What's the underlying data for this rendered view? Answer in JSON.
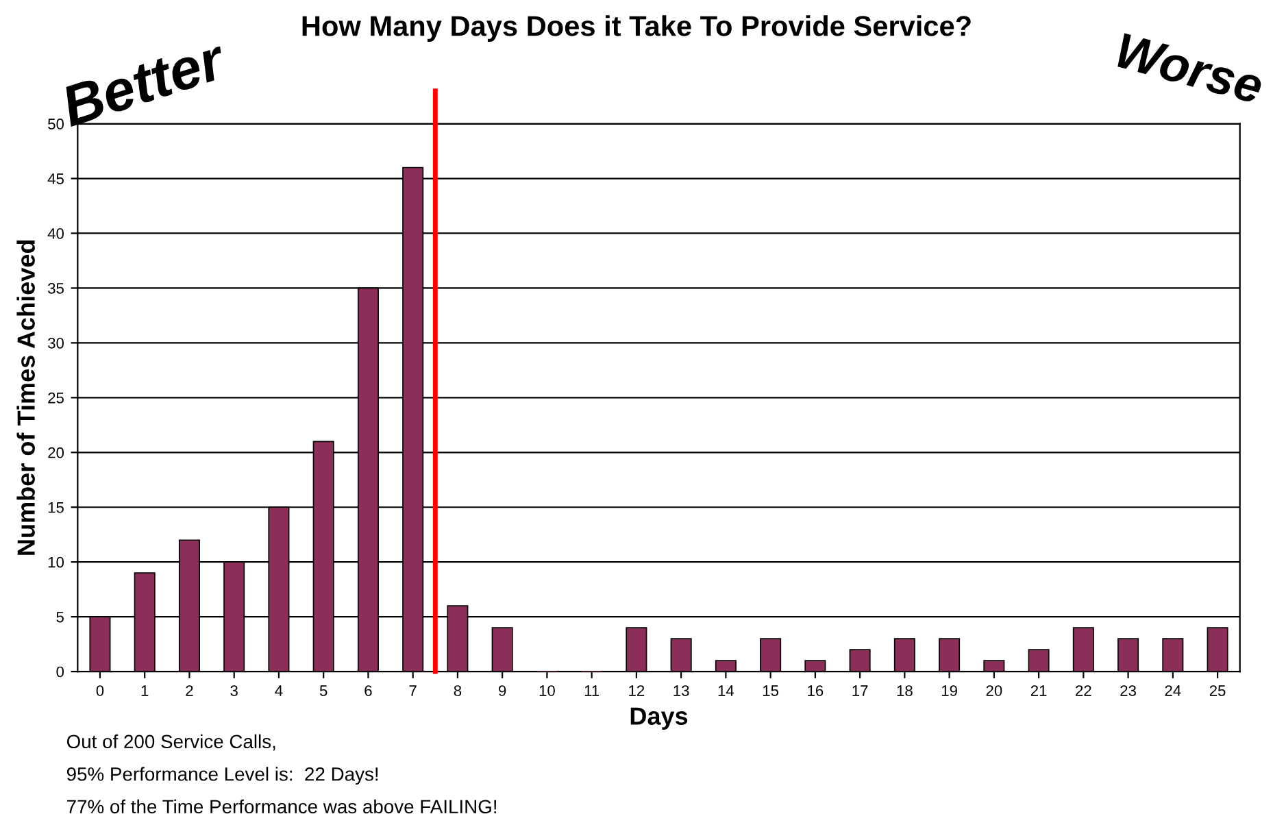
{
  "chart_data": {
    "type": "bar",
    "title": "How Many Days Does it Take To Provide Service?",
    "xlabel": "Days",
    "ylabel": "Number of Times Achieved",
    "x": [
      0,
      1,
      2,
      3,
      4,
      5,
      6,
      7,
      8,
      9,
      10,
      11,
      12,
      13,
      14,
      15,
      16,
      17,
      18,
      19,
      20,
      21,
      22,
      23,
      24,
      25
    ],
    "values": [
      5,
      9,
      12,
      10,
      15,
      21,
      35,
      46,
      6,
      4,
      0,
      0,
      4,
      3,
      1,
      3,
      1,
      2,
      3,
      3,
      1,
      2,
      4,
      3,
      3,
      4
    ],
    "color": "#8b2f5a",
    "xlim": [
      -0.5,
      25.5
    ],
    "xticks": [
      0,
      1,
      2,
      3,
      4,
      5,
      6,
      7,
      8,
      9,
      10,
      11,
      12,
      13,
      14,
      15,
      16,
      17,
      18,
      19,
      20,
      21,
      22,
      23,
      24,
      25
    ],
    "ylim": [
      0,
      50
    ],
    "yticks": [
      0,
      5,
      10,
      15,
      20,
      25,
      30,
      35,
      40,
      45,
      50
    ],
    "grid": "y",
    "ref_lines": [
      {
        "axis": "x",
        "value": 7.5,
        "color": "#ff0000"
      }
    ],
    "annotations": [
      "Better",
      "Worse",
      "Out of 200 Service Calls,",
      "95% Performance Level is:  22 Days!",
      "77% of the Time Performance was above FAILING!"
    ]
  }
}
